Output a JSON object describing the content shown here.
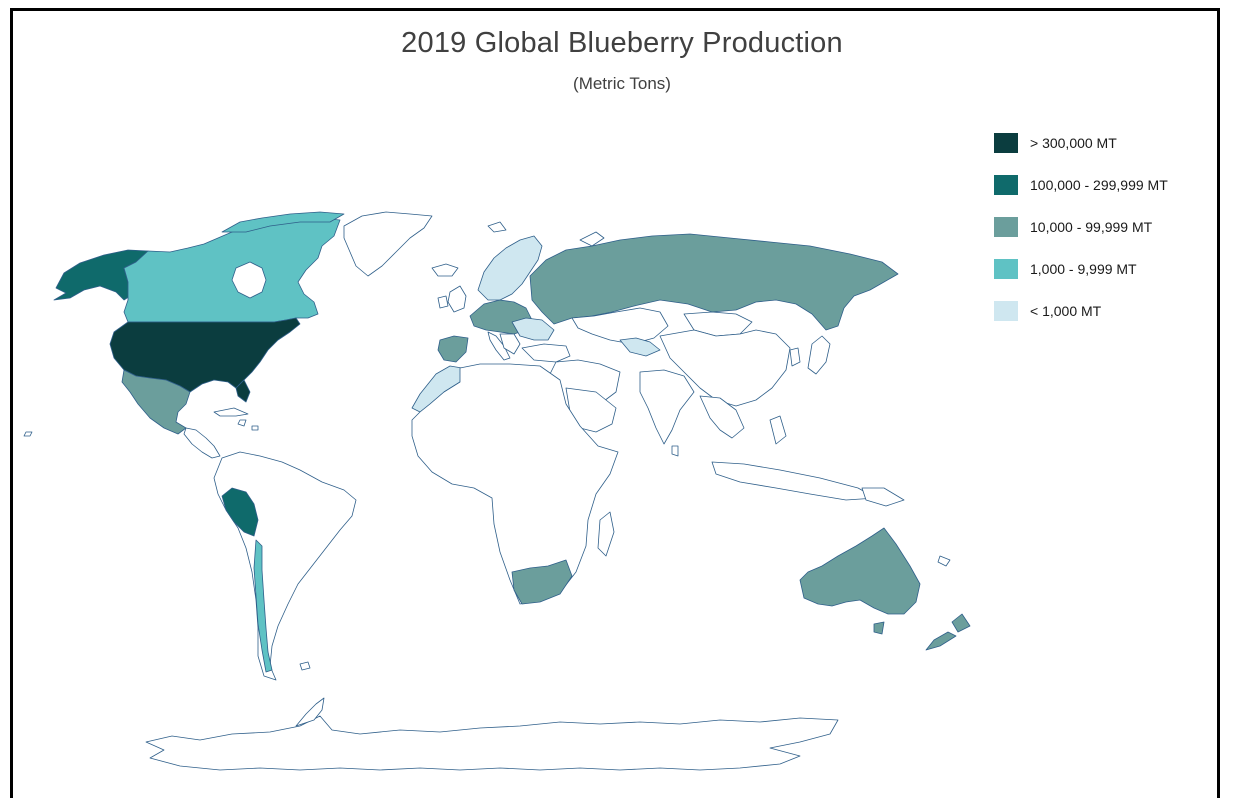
{
  "title": "2019 Global Blueberry Production",
  "subtitle": "(Metric Tons)",
  "legend": [
    {
      "label": "> 300,000 MT",
      "color": "#0b3d3f"
    },
    {
      "label": "100,000 - 299,999 MT",
      "color": "#0f6a6b"
    },
    {
      "label": "10,000 - 99,999 MT",
      "color": "#6b9e9c"
    },
    {
      "label": "1,000 - 9,999 MT",
      "color": "#5fc2c4"
    },
    {
      "label": "< 1,000 MT",
      "color": "#cfe7f0"
    }
  ],
  "colors": {
    "border": "#2f5f8a",
    "background": "#ffffff",
    "text": "#404040"
  }
}
